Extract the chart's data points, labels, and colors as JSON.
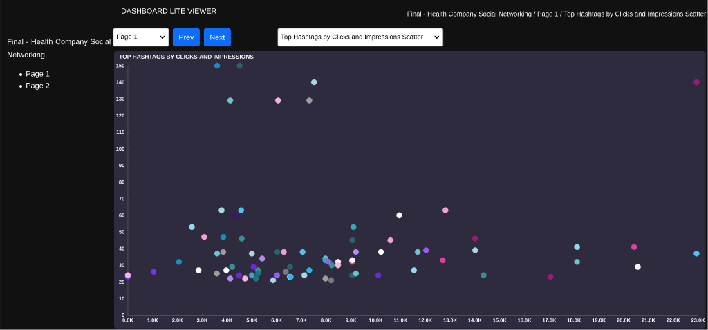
{
  "chart_data": {
    "type": "scatter",
    "title": "TOP HASHTAGS BY CLICKS AND IMPRESSIONS",
    "annotations": [
      "DASHBOARD LITE VIEWER",
      "Final - Health Company Social Networking  /  Page 1  /  Top Hashtags by Clicks and Impressions Scatter",
      "Final - Health Company Social Networking",
      "Page 1",
      "Page 2",
      "Page 1",
      "Prev",
      "Next",
      "Top Hashtags by Clicks and Impressions Scatter"
    ],
    "x": [
      0,
      0,
      1040,
      2060,
      2580,
      3080,
      2850,
      3590,
      3600,
      3600,
      3780,
      3850,
      3850,
      3970,
      4130,
      4130,
      4210,
      4340,
      4490,
      4510,
      4570,
      4590,
      4730,
      5000,
      5000,
      5070,
      5170,
      5250,
      5250,
      5420,
      5820,
      5860,
      6030,
      6020,
      6060,
      6290,
      6370,
      6540,
      6540,
      6570,
      7050,
      7120,
      7320,
      7320,
      7510,
      7970,
      7970,
      8100,
      8230,
      7970,
      8200,
      8480,
      8480,
      9050,
      9100,
      9050,
      9050,
      9200,
      9050,
      9200,
      10100,
      10210,
      10590,
      10950,
      11540,
      11690,
      11690,
      12030,
      12700,
      12810,
      14010,
      14010,
      14350,
      17050,
      18120,
      18120,
      20420,
      20570,
      22940,
      22940
    ],
    "values": [
      23,
      24,
      26,
      32,
      53,
      47,
      27,
      25,
      37,
      150,
      63,
      38,
      47,
      27,
      129,
      22,
      29,
      60,
      24,
      150,
      63,
      46,
      22,
      37,
      24,
      29,
      22,
      27,
      25,
      34,
      22,
      21,
      38,
      24,
      129,
      38,
      26,
      29,
      23,
      23,
      38,
      24,
      27,
      129,
      140,
      34,
      33,
      32,
      30,
      22,
      21,
      32,
      30,
      45,
      53,
      32,
      33,
      38,
      24,
      25,
      24,
      38,
      45,
      60,
      27,
      37,
      38,
      39,
      33,
      63,
      46,
      39,
      24,
      23,
      41,
      32,
      41,
      29,
      37,
      140
    ],
    "colors": [
      "#7b2ff7",
      "#f7b6e0",
      "#7b2ff7",
      "#1a8fbf",
      "#8fdcf0",
      "#f2a0d5",
      "#ffffff",
      "#9e9e9e",
      "#6ec3cf",
      "#1a8fbf",
      "#a8d8e0",
      "#9e9e9e",
      "#1a8fbf",
      "#ffffff",
      "#6ec3cf",
      "#b38cf2",
      "#3a8f96",
      "#3d1380",
      "#6d28d9",
      "#2a6468",
      "#4fc3ea",
      "#3a8f96",
      "#f7b6e0",
      "#a8d8e0",
      "#3aa8b8",
      "#6d28d9",
      "#1f7388",
      "#3a8f96",
      "#1f7388",
      "#b38cf2",
      "#3d1380",
      "#a8d8e0",
      "#2a6468",
      "#9b5cf0",
      "#f7b6e0",
      "#f2a0d5",
      "#7a7a7a",
      "#2a6468",
      "#d9eef5",
      "#29b6e8",
      "#4fc3ea",
      "#a8d8e0",
      "#29b6e8",
      "#9e9e9e",
      "#a8d8e0",
      "#6ec3cf",
      "#3aa8b8",
      "#9b5cf0",
      "#3a8f96",
      "#9e9e9e",
      "#7a7a7a",
      "#f5f5f5",
      "#f7b6e0",
      "#2a6468",
      "#3aa8b8",
      "#e23fa6",
      "#ffffff",
      "#b38cf2",
      "#2a6468",
      "#6ec3cf",
      "#6d28d9",
      "#ffffff",
      "#f2a0d5",
      "#ffffff",
      "#8fdcf0",
      "#3d1380",
      "#6ec3cf",
      "#9b5cf0",
      "#e23fa6",
      "#f2a0d5",
      "#a0187a",
      "#a8d8e0",
      "#3a8f96",
      "#a0187a",
      "#8fdcf0",
      "#6ec3cf",
      "#e23fa6",
      "#ffffff",
      "#4fc3ea",
      "#a0187a"
    ],
    "xlim": [
      0,
      23000
    ],
    "ylim": [
      0,
      150
    ],
    "xticks": [
      {
        "value": 0,
        "label": "0.0K"
      },
      {
        "value": 1000,
        "label": "1.0K"
      },
      {
        "value": 2000,
        "label": "2.0K"
      },
      {
        "value": 3000,
        "label": "3.0K"
      },
      {
        "value": 4000,
        "label": "4.0K"
      },
      {
        "value": 5000,
        "label": "5.0K"
      },
      {
        "value": 6000,
        "label": "6.0K"
      },
      {
        "value": 7000,
        "label": "7.0K"
      },
      {
        "value": 8000,
        "label": "8.0K"
      },
      {
        "value": 9000,
        "label": "9.0K"
      },
      {
        "value": 10000,
        "label": "10.0K"
      },
      {
        "value": 11000,
        "label": "11.0K"
      },
      {
        "value": 12000,
        "label": "12.0K"
      },
      {
        "value": 13000,
        "label": "13.0K"
      },
      {
        "value": 14000,
        "label": "14.0K"
      },
      {
        "value": 15000,
        "label": "15.0K"
      },
      {
        "value": 16000,
        "label": "16.0K"
      },
      {
        "value": 17000,
        "label": "17.0K"
      },
      {
        "value": 18000,
        "label": "18.0K"
      },
      {
        "value": 19000,
        "label": "19.0K"
      },
      {
        "value": 20000,
        "label": "20.0K"
      },
      {
        "value": 21000,
        "label": "21.0K"
      },
      {
        "value": 22000,
        "label": "22.0K"
      },
      {
        "value": 23000,
        "label": "23.0K"
      }
    ],
    "yticks": [
      0,
      10,
      20,
      30,
      40,
      50,
      60,
      70,
      80,
      90,
      100,
      110,
      120,
      130,
      140,
      150
    ],
    "marker": "circle"
  }
}
